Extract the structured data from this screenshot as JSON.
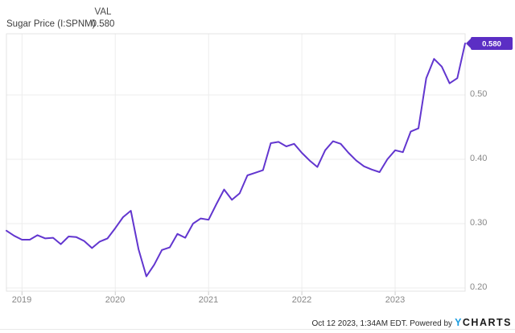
{
  "header": {
    "series_label": "Sugar Price (I:SPNM)",
    "column_label": "VAL",
    "value": "0.580"
  },
  "chart_data": {
    "type": "line",
    "title": "Sugar Price (I:SPNM)",
    "legend": "none",
    "grid": true,
    "x_range_months": [
      "2018-11",
      "2023-10"
    ],
    "series": [
      {
        "name": "Sugar Price (I:SPNM)",
        "x": [
          "2018-11",
          "2018-12",
          "2019-01",
          "2019-02",
          "2019-03",
          "2019-04",
          "2019-05",
          "2019-06",
          "2019-07",
          "2019-08",
          "2019-09",
          "2019-10",
          "2019-11",
          "2019-12",
          "2020-01",
          "2020-02",
          "2020-03",
          "2020-04",
          "2020-05",
          "2020-06",
          "2020-07",
          "2020-08",
          "2020-09",
          "2020-10",
          "2020-11",
          "2020-12",
          "2021-01",
          "2021-02",
          "2021-03",
          "2021-04",
          "2021-05",
          "2021-06",
          "2021-07",
          "2021-08",
          "2021-09",
          "2021-10",
          "2021-11",
          "2021-12",
          "2022-01",
          "2022-02",
          "2022-03",
          "2022-04",
          "2022-05",
          "2022-06",
          "2022-07",
          "2022-08",
          "2022-09",
          "2022-10",
          "2022-11",
          "2022-12",
          "2023-01",
          "2023-02",
          "2023-03",
          "2023-04",
          "2023-05",
          "2023-06",
          "2023-07",
          "2023-08",
          "2023-09",
          "2023-10"
        ],
        "values": [
          0.289,
          0.281,
          0.275,
          0.275,
          0.282,
          0.277,
          0.278,
          0.268,
          0.28,
          0.279,
          0.273,
          0.262,
          0.272,
          0.277,
          0.293,
          0.31,
          0.32,
          0.26,
          0.218,
          0.236,
          0.259,
          0.263,
          0.284,
          0.278,
          0.3,
          0.308,
          0.306,
          0.33,
          0.353,
          0.337,
          0.347,
          0.375,
          0.379,
          0.383,
          0.425,
          0.427,
          0.42,
          0.424,
          0.41,
          0.398,
          0.388,
          0.414,
          0.428,
          0.424,
          0.41,
          0.398,
          0.389,
          0.384,
          0.38,
          0.4,
          0.414,
          0.411,
          0.443,
          0.448,
          0.526,
          0.556,
          0.544,
          0.518,
          0.526,
          0.58
        ]
      }
    ],
    "x_tick_labels": [
      "2019",
      "2020",
      "2021",
      "2022",
      "2023"
    ],
    "y_tick_labels": [
      "0.50",
      "0.40",
      "0.30",
      "0.20"
    ],
    "y_ticks": [
      0.5,
      0.4,
      0.3,
      0.2
    ],
    "ylim": [
      0.195,
      0.6
    ],
    "last_value": 0.58,
    "last_value_label": "0.580"
  },
  "footer": {
    "timestamp": "Oct 12 2023, 1:34AM EDT. Powered by",
    "logo_y": "Y",
    "logo_rest": "CHARTS"
  },
  "colors": {
    "line": "#6236cf",
    "value_tag_bg": "#5b2ec4",
    "value_tag_text": "#ffffff",
    "grid": "#ededed",
    "plot_border": "#e3e3e3",
    "tick": "#cccccc",
    "axis_text": "#878787",
    "header_text": "#3d3d3d",
    "footer_text": "#2b2b2b",
    "logo_blue": "#1b9ce0",
    "background": "#ffffff"
  }
}
